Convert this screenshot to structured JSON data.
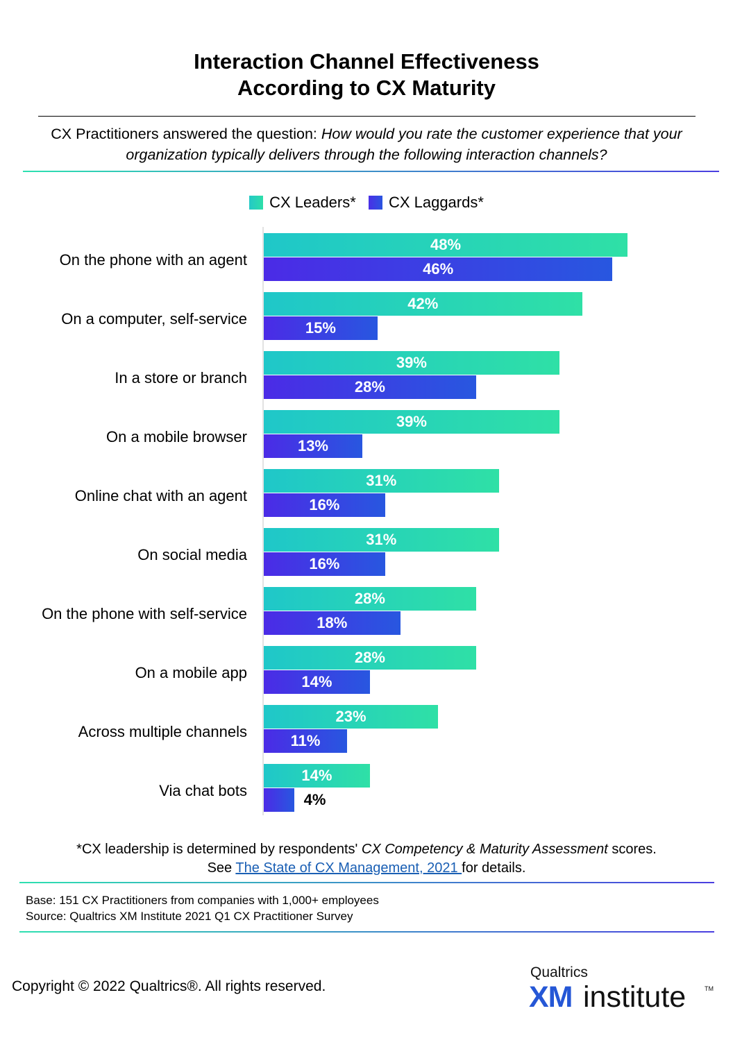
{
  "title_lines": [
    "Interaction Channel Effectiveness",
    "According to CX Maturity"
  ],
  "question": {
    "prefix": "CX Practitioners answered the question: ",
    "text": "How would you rate the customer experience that your organization typically delivers through the following interaction channels?"
  },
  "colors": {
    "leaders": "#28d4b8",
    "laggards": "#3a45e4"
  },
  "chart_data": {
    "type": "bar",
    "orientation": "horizontal",
    "unit": "%",
    "xlim": [
      0,
      60
    ],
    "grid": false,
    "legend_position": "top",
    "categories": [
      "On the phone with an agent",
      "On a computer, self-service",
      "In a store or branch",
      "On a mobile browser",
      "Online chat with an agent",
      "On social media",
      "On the phone with self-service",
      "On a mobile app",
      "Across multiple channels",
      "Via chat bots"
    ],
    "series": [
      {
        "name": "CX Leaders*",
        "values": [
          48,
          42,
          39,
          39,
          31,
          31,
          28,
          28,
          23,
          14
        ],
        "labels": [
          "48%",
          "42%",
          "39%",
          "39%",
          "31%",
          "31%",
          "28%",
          "28%",
          "23%",
          "14%"
        ]
      },
      {
        "name": "CX Laggards*",
        "values": [
          46,
          15,
          28,
          13,
          16,
          16,
          18,
          14,
          11,
          4
        ],
        "labels": [
          "46%",
          "15%",
          "28%",
          "13%",
          "16%",
          "16%",
          "18%",
          "14%",
          "11%",
          "4%"
        ]
      }
    ]
  },
  "footnote": {
    "line1_prefix": "*CX leadership is determined by respondents' ",
    "line1_italic": "CX Competency & Maturity Assessment",
    "line1_suffix": " scores.",
    "line2_prefix": "See ",
    "line2_link": "The State of CX Management, 2021 ",
    "line2_suffix": "for details."
  },
  "base_text": "Base: 151 CX Practitioners from companies with 1,000+ employees",
  "source_text": "Source: Qualtrics XM Institute 2021 Q1 CX Practitioner Survey",
  "copyright": "Copyright © 2022 Qualtrics®.  All rights reserved.",
  "logo": {
    "top": "Qualtrics",
    "xm": "XM",
    "institute": "institute",
    "tm": "TM"
  }
}
